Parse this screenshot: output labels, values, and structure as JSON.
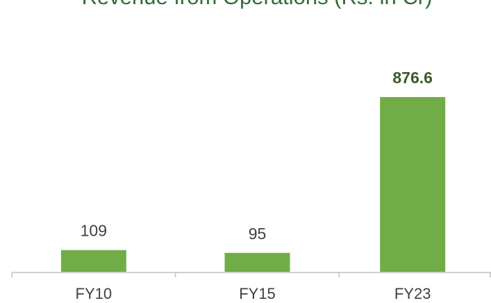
{
  "chart_data": {
    "type": "bar",
    "title": "Revenue from Operations (Rs. in Cr)",
    "categories": [
      "FY10",
      "FY15",
      "FY23"
    ],
    "values": [
      109,
      95,
      876.6
    ],
    "color": "#70ad47"
  }
}
